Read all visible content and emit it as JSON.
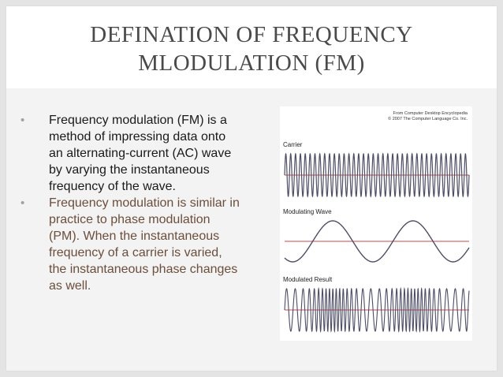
{
  "slide": {
    "title_line1": "DEFINATION OF FREQUENCY",
    "title_line2": "MLODULATION (FM)",
    "bullets": [
      {
        "marker": "•",
        "lines": [
          "Frequency modulation (FM) is a",
          "method of impressing data onto",
          "an alternating-current (AC) wave",
          "by varying the instantaneous",
          "frequency of the wave."
        ]
      },
      {
        "marker": "•",
        "lines": [
          "Frequency modulation is similar in",
          "practice to phase modulation",
          "(PM). When the instantaneous",
          "frequency of a carrier is varied,",
          "the instantaneous phase changes",
          "as well."
        ]
      }
    ]
  },
  "figure": {
    "credit_line1": "From Computer Desktop Encyclopedia",
    "credit_line2": "© 2007 The Computer Language Co. Inc.",
    "panels": [
      {
        "label": "Carrier"
      },
      {
        "label": "Modulating Wave"
      },
      {
        "label": "Modulated Result"
      }
    ],
    "colors": {
      "wave": "#4d4d66",
      "axis": "#c44a4a"
    }
  }
}
